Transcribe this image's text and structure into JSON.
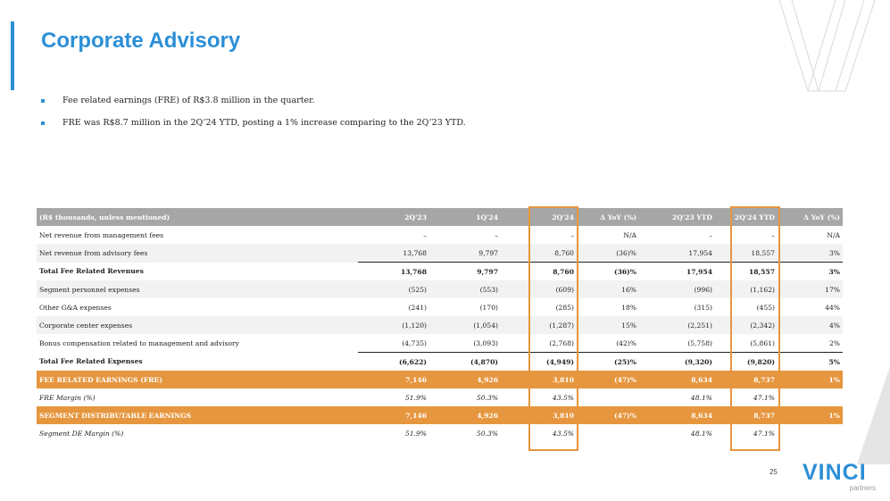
{
  "title": "Corporate Advisory",
  "bullets": [
    "Fee related earnings (FRE) of R$3.8 million in the quarter.",
    "FRE was R$8.7 million in the 2Q’24 YTD, posting a 1% increase comparing to the 2Q’23 YTD."
  ],
  "table": {
    "headers": [
      "(R$ thousands, unless mentioned)",
      "2Q'23",
      "1Q'24",
      "2Q'24",
      "Δ YoY (%)",
      "2Q'23 YTD",
      "2Q'24 YTD",
      "Δ YoY (%)"
    ],
    "rows": [
      [
        "Net revenue from management fees",
        "–",
        "–",
        "–",
        "N/A",
        "–",
        "–",
        "N/A"
      ],
      [
        "Net revenue from advisory fees",
        "13,768",
        "9,797",
        "8,760",
        "(36)%",
        "17,954",
        "18,557",
        "3%"
      ],
      [
        "Total Fee Related Revenues",
        "13,768",
        "9,797",
        "8,760",
        "(36)%",
        "17,954",
        "18,557",
        "3%"
      ],
      [
        "Segment personnel expenses",
        "(525)",
        "(553)",
        "(609)",
        "16%",
        "(996)",
        "(1,162)",
        "17%"
      ],
      [
        "Other G&A expenses",
        "(241)",
        "(170)",
        "(285)",
        "18%",
        "(315)",
        "(455)",
        "44%"
      ],
      [
        "Corporate center expenses",
        "(1,120)",
        "(1,054)",
        "(1,287)",
        "15%",
        "(2,251)",
        "(2,342)",
        "4%"
      ],
      [
        "Bonus compensation related to management and advisory",
        "(4,735)",
        "(3,093)",
        "(2,768)",
        "(42)%",
        "(5,758)",
        "(5,861)",
        "2%"
      ],
      [
        "Total Fee Related Expenses",
        "(6,622)",
        "(4,870)",
        "(4,949)",
        "(25)%",
        "(9,320)",
        "(9,820)",
        "5%"
      ],
      [
        "FEE RELATED EARNINGS (FRE)",
        "7,146",
        "4,926",
        "3,810",
        "(47)%",
        "8,634",
        "8,737",
        "1%"
      ],
      [
        "FRE Margin (%)",
        "51.9%",
        "50.3%",
        "43.5%",
        "",
        "48.1%",
        "47.1%",
        ""
      ],
      [
        "SEGMENT DISTRIBUTABLE EARNINGS",
        "7,146",
        "4,926",
        "3,810",
        "(47)%",
        "8,634",
        "8,737",
        "1%"
      ],
      [
        "Segment DE Margin (%)",
        "51.9%",
        "50.3%",
        "43.5%",
        "",
        "48.1%",
        "47.1%",
        ""
      ]
    ]
  },
  "page_number": "25",
  "logo": {
    "name": "VINCI",
    "sub": "partners"
  },
  "colors": {
    "accent": "#2c8fd6",
    "highlight": "#e6963e",
    "header": "#a6a6a6"
  }
}
